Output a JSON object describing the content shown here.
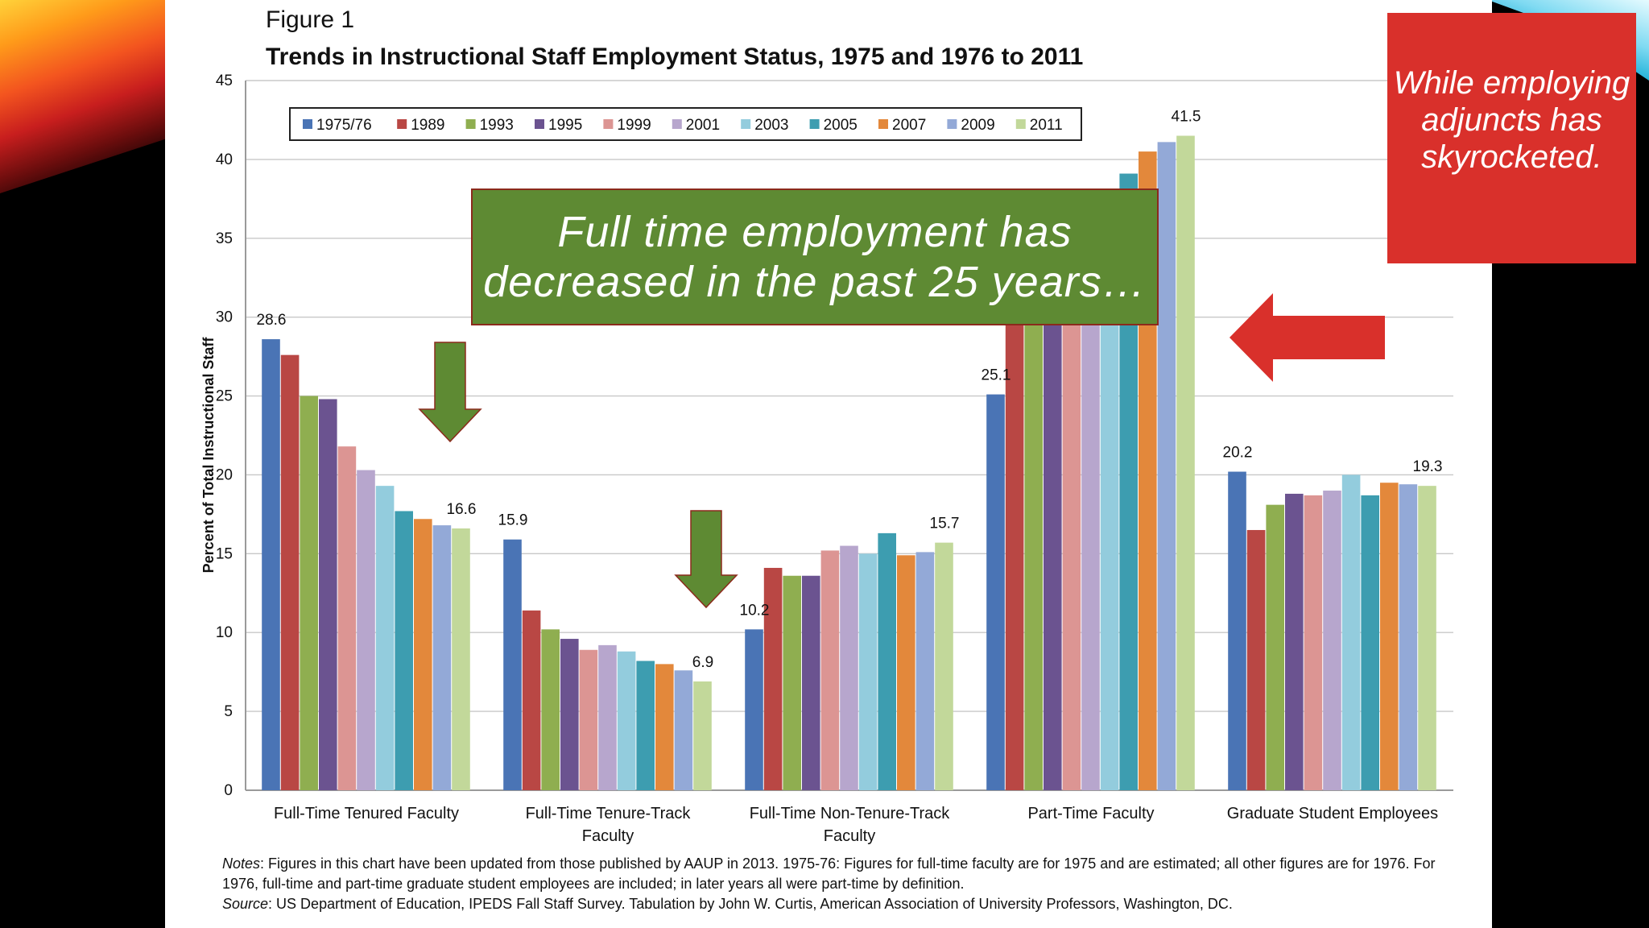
{
  "figure_label": "Figure 1",
  "callout_left": "Full time employment has decreased in the past 25 years…",
  "callout_right": "While employing adjuncts has skyrocketed.",
  "notes": {
    "notes_label": "Notes",
    "notes_text": ": Figures in this chart have been updated from those published by AAUP in 2013. 1975-76: Figures for full-time faculty are for 1975 and are estimated; all other figures are for 1976. For 1976, full-time and part-time graduate student employees are included; in later years all were part-time by definition.",
    "source_label": "Source",
    "source_text": ": US Department of Education, IPEDS Fall Staff Survey. Tabulation by John W. Curtis, American Association of University Professors, Washington, DC."
  },
  "colors": {
    "green_callout": "#5e8a33",
    "red_callout": "#d9302b",
    "arrow_green": "#5e8a33",
    "arrow_red": "#d9302b"
  },
  "chart_data": {
    "type": "bar",
    "title": "Trends in Instructional Staff Employment Status, 1975 and 1976 to 2011",
    "xlabel": "",
    "ylabel": "Percent of Total Instructional Staff",
    "ylim": [
      0,
      45
    ],
    "yticks": [
      0,
      5,
      10,
      15,
      20,
      25,
      30,
      35,
      40,
      45
    ],
    "grid": true,
    "legend_position": "top",
    "categories": [
      "Full-Time Tenured Faculty",
      "Full-Time Tenure-Track Faculty",
      "Full-Time Non-Tenure-Track Faculty",
      "Part-Time Faculty",
      "Graduate Student Employees"
    ],
    "series": [
      {
        "name": "1975/76",
        "color": "#4a74b5",
        "values": [
          28.6,
          15.9,
          10.2,
          25.1,
          20.2
        ]
      },
      {
        "name": "1989",
        "color": "#b94744",
        "values": [
          27.6,
          11.4,
          14.1,
          30.4,
          16.5
        ]
      },
      {
        "name": "1993",
        "color": "#8fae50",
        "values": [
          25.0,
          10.2,
          13.6,
          33.1,
          18.1
        ]
      },
      {
        "name": "1995",
        "color": "#6b5390",
        "values": [
          24.8,
          9.6,
          13.6,
          33.2,
          18.8
        ]
      },
      {
        "name": "1999",
        "color": "#dc9593",
        "values": [
          21.8,
          8.9,
          15.2,
          35.5,
          18.7
        ]
      },
      {
        "name": "2001",
        "color": "#b7a6cd",
        "values": [
          20.3,
          9.2,
          15.5,
          36.0,
          19.0
        ]
      },
      {
        "name": "2003",
        "color": "#93ccdd",
        "values": [
          19.3,
          8.8,
          15.0,
          37.0,
          20.0
        ]
      },
      {
        "name": "2005",
        "color": "#3d9db0",
        "values": [
          17.7,
          8.2,
          16.3,
          39.1,
          18.7
        ]
      },
      {
        "name": "2007",
        "color": "#e3883b",
        "values": [
          17.2,
          8.0,
          14.9,
          40.5,
          19.5
        ]
      },
      {
        "name": "2009",
        "color": "#93a9d7",
        "values": [
          16.8,
          7.6,
          15.1,
          41.1,
          19.4
        ]
      },
      {
        "name": "2011",
        "color": "#c2d89a",
        "values": [
          16.6,
          6.9,
          15.7,
          41.5,
          19.3
        ]
      }
    ],
    "data_labels": [
      {
        "category": 0,
        "series": 0,
        "text": "28.6"
      },
      {
        "category": 0,
        "series": 10,
        "text": "16.6"
      },
      {
        "category": 1,
        "series": 0,
        "text": "15.9"
      },
      {
        "category": 1,
        "series": 10,
        "text": "6.9"
      },
      {
        "category": 2,
        "series": 0,
        "text": "10.2"
      },
      {
        "category": 2,
        "series": 10,
        "text": "15.7"
      },
      {
        "category": 3,
        "series": 0,
        "text": "25.1"
      },
      {
        "category": 3,
        "series": 10,
        "text": "41.5"
      },
      {
        "category": 4,
        "series": 0,
        "text": "20.2"
      },
      {
        "category": 4,
        "series": 10,
        "text": "19.3"
      }
    ]
  }
}
